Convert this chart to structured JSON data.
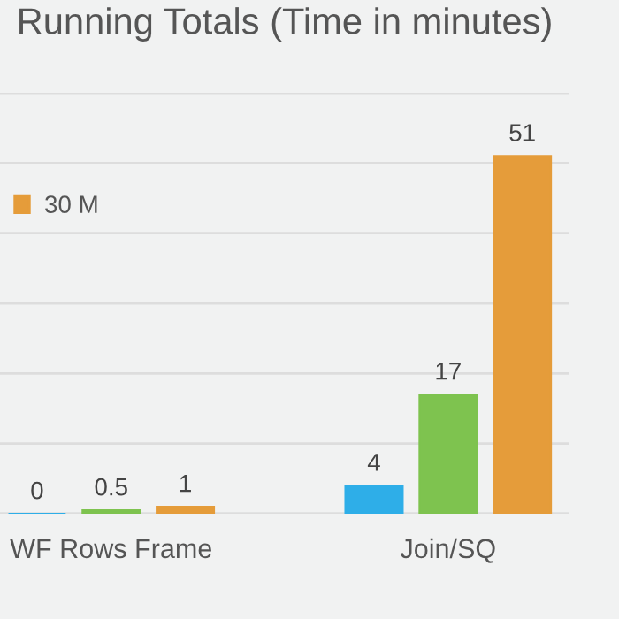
{
  "chart_data": {
    "type": "bar",
    "title": "Running Totals (Time in minutes)",
    "categories": [
      "WF Rows Frame",
      "Join/SQ"
    ],
    "series": [
      {
        "color": "#2eaee8",
        "values": [
          0,
          4
        ]
      },
      {
        "color": "#7ec34f",
        "values": [
          0.5,
          17
        ]
      },
      {
        "name": "30 M",
        "color": "#e59c3a",
        "values": [
          1,
          51
        ]
      }
    ],
    "ylim": [
      0,
      60
    ],
    "yticks": [
      {
        "value": 0,
        "label": null
      },
      {
        "value": 10,
        "label": null
      },
      {
        "value": 20,
        "label": null
      },
      {
        "value": 30,
        "label": null
      },
      {
        "value": 40,
        "label": null
      },
      {
        "value": 50,
        "label": null
      },
      {
        "value": 60,
        "label": null
      }
    ],
    "tick_labels": "x",
    "grid": "y",
    "legend": "left",
    "data_labels": true
  }
}
